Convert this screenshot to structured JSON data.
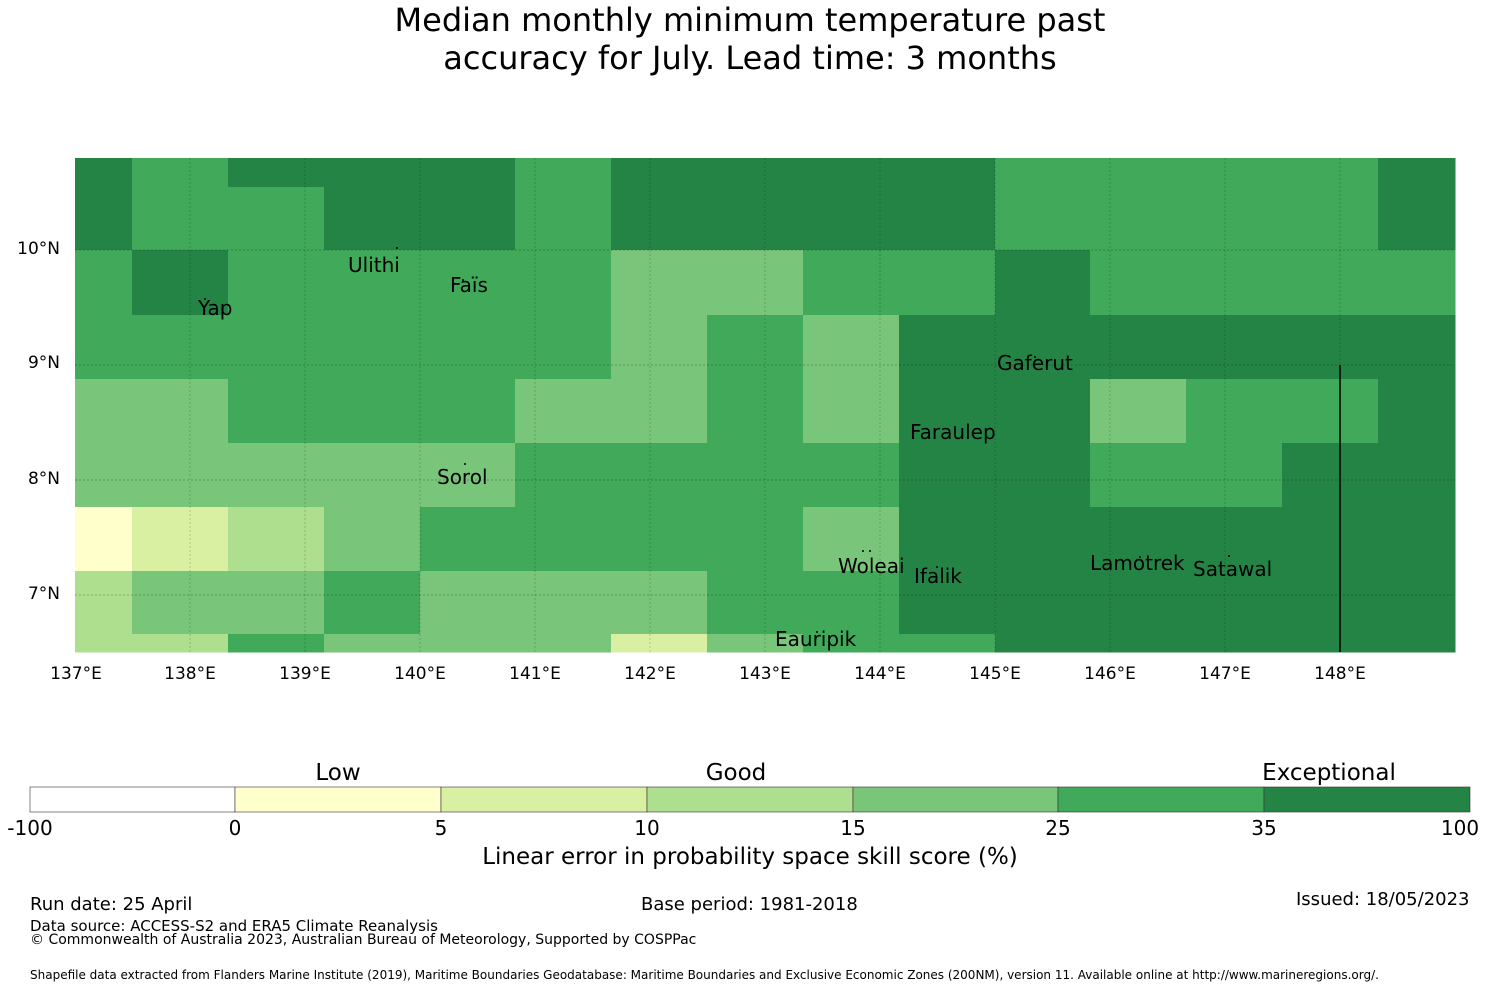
{
  "title": {
    "line1": "Median monthly minimum temperature past",
    "line2": "accuracy for July. Lead time: 3 months"
  },
  "map": {
    "lat_labels": [
      "10°N",
      "9°N",
      "8°N",
      "7°N"
    ],
    "lon_labels": [
      "137°E",
      "138°E",
      "139°E",
      "140°E",
      "141°E",
      "142°E",
      "143°E",
      "144°E",
      "145°E",
      "146°E",
      "147°E",
      "148°E"
    ],
    "places": [
      "Ulithi",
      "Faïs",
      "Yap",
      "Gaferut",
      "Faraulep",
      "Sorol",
      "Woleai",
      "Ifalik",
      "Lamotrek",
      "Satawal",
      "Eauripik"
    ],
    "grid_note_colors": {
      "exceptional_dark": "#248445",
      "good_strong": "#40aa5a",
      "good_mid": "#79c67a",
      "good_light": "#addf8e",
      "low_light": "#d9f0a3",
      "low": "#ffffcc",
      "none": "#ffffff"
    }
  },
  "colorbar": {
    "categories": [
      "Low",
      "Good",
      "Exceptional"
    ],
    "ticks": [
      "-100",
      "0",
      "5",
      "10",
      "15",
      "25",
      "35",
      "100"
    ],
    "colors": [
      "#ffffff",
      "#ffffcc",
      "#d9f0a3",
      "#addf8e",
      "#79c67a",
      "#40aa5a",
      "#248445"
    ],
    "label": "Linear error in probability space skill score (%)"
  },
  "footer": {
    "run_date": "Run date: 25 April",
    "base_period": "Base period: 1981-2018",
    "issued": "Issued: 18/05/2023",
    "data_source": "Data source: ACCESS-S2 and ERA5 Climate Reanalysis",
    "copyright": "© Commonwealth of Australia 2023, Australian Bureau of Meteorology, Supported by COSPPac",
    "shapefile": "Shapefile data extracted from Flanders Marine Institute (2019), Maritime Boundaries Geodatabase: Maritime Boundaries and Exclusive Economic Zones (200NM), version 11. Available online at http://www.marineregions.org/."
  }
}
